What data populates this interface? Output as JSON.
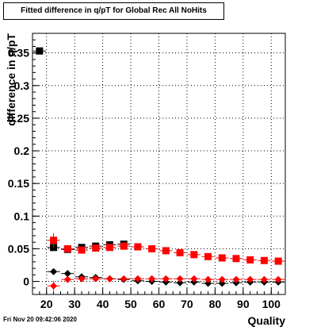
{
  "title": "Fitted difference in q/pT for Global Rec All NoHits",
  "footer": "Fri Nov 20 09:42:06 2020",
  "chart_data": {
    "type": "scatter",
    "title": "Fitted difference in q/pT for Global Rec All NoHits",
    "xlabel": "Quality",
    "ylabel": "difference in q/pT",
    "xlim": [
      15,
      105
    ],
    "ylim": [
      -0.02,
      0.38
    ],
    "x_ticks": [
      "20",
      "30",
      "40",
      "50",
      "60",
      "70",
      "80",
      "90",
      "100"
    ],
    "y_ticks": [
      "0",
      "0.05",
      "0.1",
      "0.15",
      "0.2",
      "0.25",
      "0.3",
      "0.35"
    ],
    "grid": true,
    "series": [
      {
        "color": "#000000",
        "marker": "square",
        "x": [
          17.5,
          22.5,
          27.5,
          32.5,
          37.5,
          42.5,
          47.5
        ],
        "y": [
          0.353,
          0.052,
          0.049,
          0.052,
          0.054,
          0.056,
          0.057
        ]
      },
      {
        "color": "#ff0000",
        "marker": "square",
        "x": [
          22.5,
          27.5,
          32.5,
          37.5,
          42.5,
          47.5,
          52.5,
          57.5,
          62.5,
          67.5,
          72.5,
          77.5,
          82.5,
          87.5,
          92.5,
          97.5,
          102.5
        ],
        "y": [
          0.063,
          0.05,
          0.048,
          0.051,
          0.052,
          0.054,
          0.053,
          0.05,
          0.047,
          0.044,
          0.041,
          0.038,
          0.036,
          0.035,
          0.033,
          0.032,
          0.031
        ]
      },
      {
        "color": "#000000",
        "marker": "diamond",
        "x": [
          22.5,
          27.5,
          32.5,
          37.5,
          42.5,
          47.5,
          52.5,
          57.5,
          62.5,
          67.5,
          72.5,
          77.5,
          82.5,
          87.5,
          92.5,
          97.5,
          102.5
        ],
        "y": [
          0.015,
          0.012,
          0.007,
          0.006,
          0.004,
          0.003,
          0.001,
          0.0,
          -0.001,
          -0.002,
          -0.001,
          -0.003,
          -0.003,
          -0.002,
          -0.001,
          -0.001,
          -0.001
        ]
      },
      {
        "color": "#ff0000",
        "marker": "diamond",
        "x": [
          22.5,
          27.5,
          32.5,
          37.5,
          42.5,
          47.5,
          52.5,
          57.5,
          62.5,
          67.5,
          72.5,
          77.5,
          82.5,
          87.5,
          92.5,
          97.5,
          102.5
        ],
        "y": [
          -0.007,
          0.003,
          0.004,
          0.004,
          0.004,
          0.004,
          0.004,
          0.004,
          0.004,
          0.004,
          0.004,
          0.003,
          0.003,
          0.003,
          0.003,
          0.003,
          0.003
        ]
      }
    ]
  }
}
